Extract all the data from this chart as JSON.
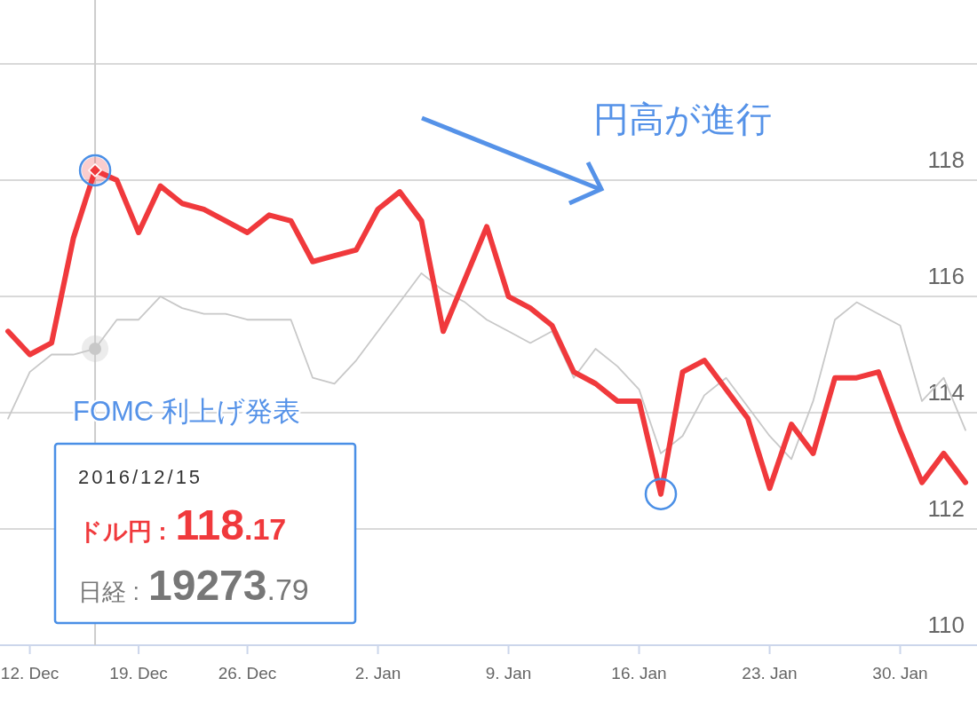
{
  "chart_data": {
    "type": "line",
    "categories": [
      null,
      "12. Dec",
      null,
      null,
      null,
      null,
      "19. Dec",
      null,
      null,
      null,
      null,
      "26. Dec",
      null,
      null,
      null,
      null,
      null,
      "2. Jan",
      null,
      null,
      null,
      null,
      null,
      "9. Jan",
      null,
      null,
      null,
      null,
      null,
      "16. Jan",
      null,
      null,
      null,
      null,
      null,
      "23. Jan",
      null,
      null,
      null,
      null,
      null,
      "30. Jan",
      null,
      null,
      null
    ],
    "series": [
      {
        "color": "#f0393c",
        "values": [
          115.4,
          115.0,
          115.2,
          117.0,
          118.17,
          118.0,
          117.1,
          117.9,
          117.6,
          117.5,
          117.3,
          117.1,
          117.4,
          117.3,
          116.6,
          116.7,
          116.8,
          117.5,
          117.8,
          117.3,
          115.4,
          116.3,
          117.2,
          116.0,
          115.8,
          115.5,
          114.7,
          114.5,
          114.2,
          114.2,
          112.6,
          114.7,
          114.9,
          114.4,
          113.9,
          112.7,
          113.8,
          113.3,
          114.6,
          114.6,
          114.7,
          113.7,
          112.8,
          113.3,
          112.8
        ]
      },
      {
        "color": "#c8c8c8",
        "values": [
          113.9,
          114.7,
          115.0,
          115.0,
          115.1,
          115.6,
          115.6,
          116.0,
          115.8,
          115.7,
          115.7,
          115.6,
          115.6,
          115.6,
          114.6,
          114.5,
          114.9,
          115.4,
          115.9,
          116.4,
          116.1,
          115.9,
          115.6,
          115.4,
          115.2,
          115.4,
          114.6,
          115.1,
          114.8,
          114.4,
          113.3,
          113.6,
          114.3,
          114.6,
          114.1,
          113.6,
          113.2,
          114.2,
          115.6,
          115.9,
          115.7,
          115.5,
          114.2,
          114.6,
          113.7
        ]
      }
    ],
    "ylim": [
      110,
      121.1
    ],
    "yticks": [
      110,
      112,
      114,
      116,
      118,
      {
        "value": 120,
        "label": null
      }
    ],
    "grid": "y",
    "annotations": [
      "円高が進行",
      "FOMC 利上げ発表",
      "2016/12/15",
      "ドル円 :118.17",
      "日経 :19273.79"
    ]
  }
}
